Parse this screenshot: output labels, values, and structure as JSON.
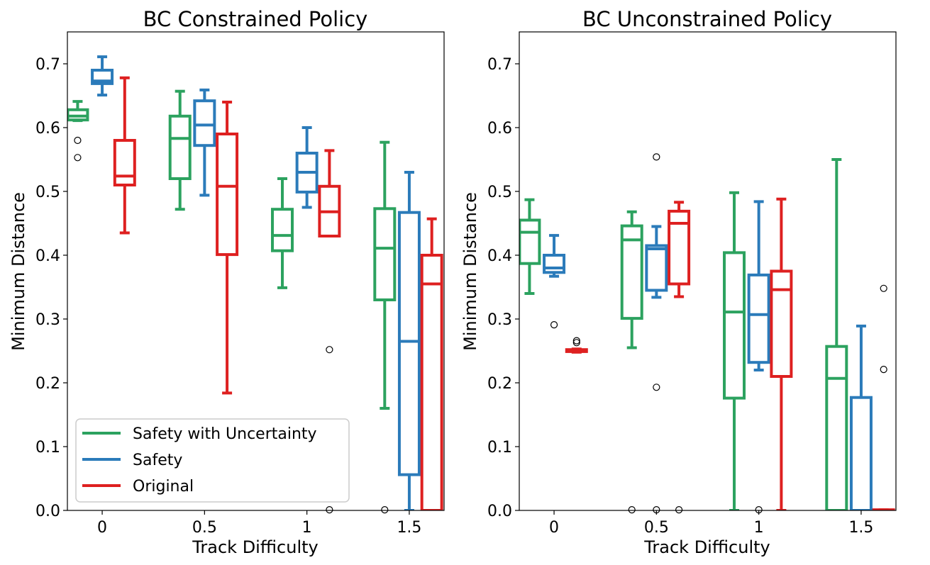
{
  "figure": {
    "series_styles": [
      {
        "name": "Safety with Uncertainty",
        "color": "#2ca25f"
      },
      {
        "name": "Safety",
        "color": "#2b7bba"
      },
      {
        "name": "Original",
        "color": "#de2020"
      }
    ]
  },
  "chart_data": [
    {
      "type": "box",
      "title": "BC Constrained Policy",
      "xlabel": "Track Difficulty",
      "ylabel": "Minimum Distance",
      "xlim": [
        -0.17,
        1.67
      ],
      "ylim": [
        0.0,
        0.75
      ],
      "xticks": [
        0,
        0.5,
        1,
        1.5
      ],
      "xtick_labels": [
        "0",
        "0.5",
        "1",
        "1.5"
      ],
      "yticks": [
        0.0,
        0.1,
        0.2,
        0.3,
        0.4,
        0.5,
        0.6,
        0.7
      ],
      "ytick_labels": [
        "0.0",
        "0.1",
        "0.2",
        "0.3",
        "0.4",
        "0.5",
        "0.6",
        "0.7"
      ],
      "grid": false,
      "legend": {
        "placement": "lower-left",
        "entries": [
          "Safety with Uncertainty",
          "Safety",
          "Original"
        ]
      },
      "boxes": [
        {
          "series": "Safety with Uncertainty",
          "x": -0.12,
          "whisker_low": 0.611,
          "q1": 0.612,
          "median": 0.618,
          "q3": 0.628,
          "whisker_high": 0.641,
          "outliers": [
            0.58,
            0.553
          ]
        },
        {
          "series": "Safety",
          "x": 0.0,
          "whisker_low": 0.651,
          "q1": 0.669,
          "median": 0.673,
          "q3": 0.69,
          "whisker_high": 0.711,
          "outliers": []
        },
        {
          "series": "Original",
          "x": 0.11,
          "whisker_low": 0.435,
          "q1": 0.51,
          "median": 0.524,
          "q3": 0.58,
          "whisker_high": 0.678,
          "outliers": []
        },
        {
          "series": "Safety with Uncertainty",
          "x": 0.38,
          "whisker_low": 0.472,
          "q1": 0.52,
          "median": 0.583,
          "q3": 0.618,
          "whisker_high": 0.657,
          "outliers": []
        },
        {
          "series": "Safety",
          "x": 0.5,
          "whisker_low": 0.494,
          "q1": 0.572,
          "median": 0.604,
          "q3": 0.642,
          "whisker_high": 0.659,
          "outliers": []
        },
        {
          "series": "Original",
          "x": 0.61,
          "whisker_low": 0.184,
          "q1": 0.401,
          "median": 0.508,
          "q3": 0.59,
          "whisker_high": 0.64,
          "outliers": []
        },
        {
          "series": "Safety with Uncertainty",
          "x": 0.88,
          "whisker_low": 0.349,
          "q1": 0.407,
          "median": 0.431,
          "q3": 0.472,
          "whisker_high": 0.52,
          "outliers": []
        },
        {
          "series": "Safety",
          "x": 1.0,
          "whisker_low": 0.475,
          "q1": 0.499,
          "median": 0.53,
          "q3": 0.56,
          "whisker_high": 0.6,
          "outliers": []
        },
        {
          "series": "Original",
          "x": 1.11,
          "whisker_low": 0.43,
          "q1": 0.43,
          "median": 0.468,
          "q3": 0.508,
          "whisker_high": 0.564,
          "outliers": [
            0.252,
            0.001
          ]
        },
        {
          "series": "Safety with Uncertainty",
          "x": 1.38,
          "whisker_low": 0.16,
          "q1": 0.33,
          "median": 0.411,
          "q3": 0.473,
          "whisker_high": 0.577,
          "outliers": [
            0.001
          ]
        },
        {
          "series": "Safety",
          "x": 1.5,
          "whisker_low": 0.0,
          "q1": 0.056,
          "median": 0.265,
          "q3": 0.467,
          "whisker_high": 0.53,
          "outliers": []
        },
        {
          "series": "Original",
          "x": 1.61,
          "whisker_low": 0.0,
          "q1": 0.0,
          "median": 0.355,
          "q3": 0.4,
          "whisker_high": 0.457,
          "outliers": []
        }
      ]
    },
    {
      "type": "box",
      "title": "BC Unconstrained Policy",
      "xlabel": "Track Difficulty",
      "ylabel": "Minimum Distance",
      "xlim": [
        -0.17,
        1.67
      ],
      "ylim": [
        0.0,
        0.75
      ],
      "xticks": [
        0,
        0.5,
        1,
        1.5
      ],
      "xtick_labels": [
        "0",
        "0.5",
        "1",
        "1.5"
      ],
      "yticks": [
        0.0,
        0.1,
        0.2,
        0.3,
        0.4,
        0.5,
        0.6,
        0.7
      ],
      "ytick_labels": [
        "0.0",
        "0.1",
        "0.2",
        "0.3",
        "0.4",
        "0.5",
        "0.6",
        "0.7"
      ],
      "grid": false,
      "boxes": [
        {
          "series": "Safety with Uncertainty",
          "x": -0.12,
          "whisker_low": 0.34,
          "q1": 0.387,
          "median": 0.436,
          "q3": 0.455,
          "whisker_high": 0.487,
          "outliers": []
        },
        {
          "series": "Safety",
          "x": 0.0,
          "whisker_low": 0.367,
          "q1": 0.373,
          "median": 0.38,
          "q3": 0.4,
          "whisker_high": 0.431,
          "outliers": [
            0.291
          ]
        },
        {
          "series": "Original",
          "x": 0.11,
          "whisker_low": 0.248,
          "q1": 0.249,
          "median": 0.25,
          "q3": 0.252,
          "whisker_high": 0.253,
          "outliers": [
            0.263,
            0.266
          ]
        },
        {
          "series": "Safety with Uncertainty",
          "x": 0.38,
          "whisker_low": 0.255,
          "q1": 0.301,
          "median": 0.424,
          "q3": 0.446,
          "whisker_high": 0.468,
          "outliers": [
            0.001
          ]
        },
        {
          "series": "Safety",
          "x": 0.5,
          "whisker_low": 0.334,
          "q1": 0.345,
          "median": 0.41,
          "q3": 0.415,
          "whisker_high": 0.445,
          "outliers": [
            0.554,
            0.193,
            0.001
          ]
        },
        {
          "series": "Original",
          "x": 0.61,
          "whisker_low": 0.335,
          "q1": 0.355,
          "median": 0.45,
          "q3": 0.469,
          "whisker_high": 0.483,
          "outliers": [
            0.001
          ]
        },
        {
          "series": "Safety with Uncertainty",
          "x": 0.88,
          "whisker_low": 0.0,
          "q1": 0.176,
          "median": 0.311,
          "q3": 0.404,
          "whisker_high": 0.498,
          "outliers": []
        },
        {
          "series": "Safety",
          "x": 1.0,
          "whisker_low": 0.22,
          "q1": 0.232,
          "median": 0.307,
          "q3": 0.369,
          "whisker_high": 0.484,
          "outliers": [
            0.001
          ]
        },
        {
          "series": "Original",
          "x": 1.11,
          "whisker_low": 0.0,
          "q1": 0.21,
          "median": 0.346,
          "q3": 0.375,
          "whisker_high": 0.488,
          "outliers": []
        },
        {
          "series": "Safety with Uncertainty",
          "x": 1.38,
          "whisker_low": 0.0,
          "q1": 0.0,
          "median": 0.207,
          "q3": 0.257,
          "whisker_high": 0.55,
          "outliers": []
        },
        {
          "series": "Safety",
          "x": 1.5,
          "whisker_low": 0.0,
          "q1": 0.0,
          "median": 0.0,
          "q3": 0.177,
          "whisker_high": 0.289,
          "outliers": []
        },
        {
          "series": "Original",
          "x": 1.61,
          "whisker_low": 0.0,
          "q1": 0.0,
          "median": 0.0,
          "q3": 0.001,
          "whisker_high": 0.001,
          "outliers": [
            0.348,
            0.221
          ]
        }
      ]
    }
  ]
}
